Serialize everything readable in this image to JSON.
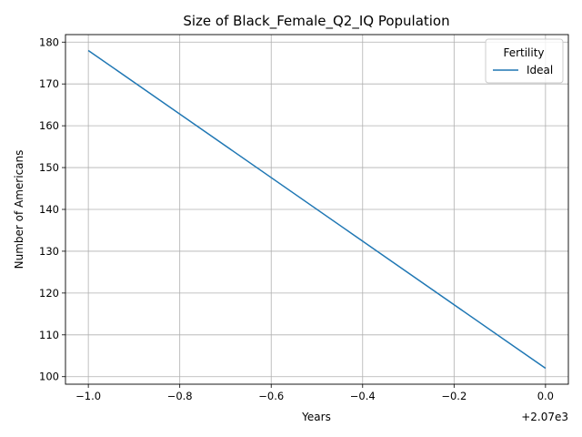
{
  "chart_data": {
    "type": "line",
    "title": "Size of Black_Female_Q2_IQ Population",
    "xlabel": "Years",
    "ylabel": "Number of Americans",
    "x_offset_label": "+2.07e3",
    "xlim": [
      -1.05,
      0.05
    ],
    "ylim": [
      98.2,
      181.8
    ],
    "x_ticks": [
      -1.0,
      -0.8,
      -0.6,
      -0.4,
      -0.2,
      0.0
    ],
    "x_tick_labels": [
      "−1.0",
      "−0.8",
      "−0.6",
      "−0.4",
      "−0.2",
      "0.0"
    ],
    "y_ticks": [
      100,
      110,
      120,
      130,
      140,
      150,
      160,
      170,
      180
    ],
    "y_tick_labels": [
      "100",
      "110",
      "120",
      "130",
      "140",
      "150",
      "160",
      "170",
      "180"
    ],
    "grid": true,
    "legend": {
      "title": "Fertility",
      "placement": "top-right"
    },
    "series": [
      {
        "name": "Ideal",
        "color": "#1f77b4",
        "x": [
          -1.0,
          0.0
        ],
        "y": [
          178,
          102
        ]
      }
    ]
  }
}
